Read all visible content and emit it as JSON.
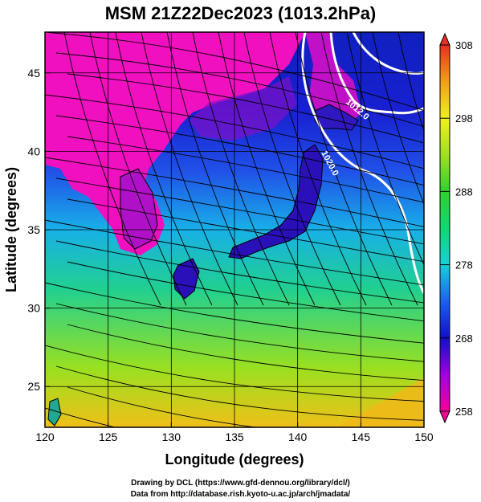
{
  "title": "MSM 21Z22Dec2023 (1013.2hPa)",
  "map": {
    "xaxis": {
      "label": "Longitude (degrees)",
      "ticks": [
        120,
        125,
        130,
        135,
        140,
        145,
        150
      ],
      "range": [
        120,
        150
      ]
    },
    "yaxis": {
      "label": "Latitude  (degrees)",
      "ticks": [
        25,
        30,
        35,
        40,
        45
      ],
      "range": [
        22.4,
        47.6
      ]
    },
    "contour_labels": [
      "1012.0",
      "1020.0"
    ]
  },
  "colorbar": {
    "ticks": [
      308,
      298,
      288,
      278,
      268,
      258
    ],
    "range": [
      258,
      308
    ]
  },
  "credits": {
    "line1": "Drawing by DCL (https://www.gfd-dennou.org/library/dcl/)",
    "line2": "Data from http://database.rish.kyoto-u.ac.jp/arch/jmadata/"
  }
}
